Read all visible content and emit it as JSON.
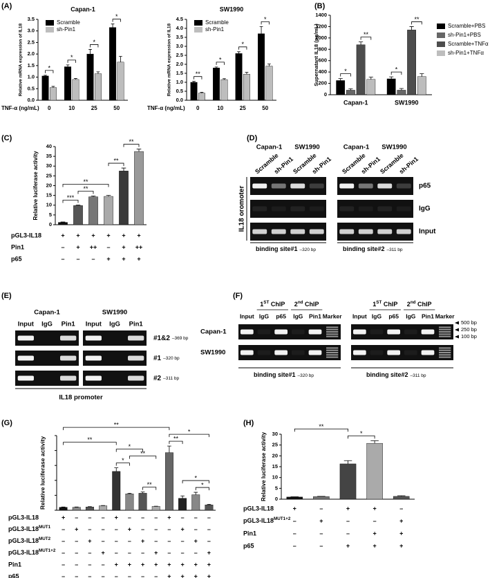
{
  "panel_labels": [
    "(A)",
    "(B)",
    "(C)",
    "(D)",
    "(E)",
    "(F)",
    "(G)",
    "(H)"
  ],
  "chart_data": [
    {
      "type": "bar",
      "title": "Capan-1",
      "ylabel": "Relative mRNA expression of IL18",
      "xlabel": "TNF-α (ng/mL)",
      "categories": [
        "0",
        "10",
        "25",
        "50"
      ],
      "series": [
        {
          "name": "Scramble",
          "color": "#000000",
          "values": [
            1.05,
            1.45,
            2.0,
            3.15
          ],
          "errors": [
            0.03,
            0.08,
            0.2,
            0.15
          ]
        },
        {
          "name": "sh-Pin1",
          "color": "#bdbdbd",
          "values": [
            0.55,
            0.9,
            1.15,
            1.65
          ],
          "errors": [
            0.05,
            0.04,
            0.08,
            0.25
          ]
        }
      ],
      "ylim": [
        0,
        3.5
      ],
      "yticks": [
        {
          "value": 0,
          "label": "0.0"
        },
        {
          "value": 0.5,
          "label": "0.5"
        },
        {
          "value": 1,
          "label": "1.0"
        },
        {
          "value": 1.5,
          "label": "1.5"
        },
        {
          "value": 2,
          "label": "2.0"
        },
        {
          "value": 2.5,
          "label": "2.5"
        },
        {
          "value": 3,
          "label": "3.0"
        },
        {
          "value": 3.5,
          "label": "3.5"
        }
      ],
      "legend": "upper-left",
      "significance": [
        {
          "category": 0,
          "series": [
            0,
            1
          ],
          "label": "*"
        },
        {
          "category": 1,
          "series": [
            0,
            1
          ],
          "label": "*"
        },
        {
          "category": 2,
          "series": [
            0,
            1
          ],
          "label": "*"
        },
        {
          "category": 3,
          "series": [
            0,
            1
          ],
          "label": "*"
        }
      ]
    },
    {
      "type": "bar",
      "title": "SW1990",
      "ylabel": "Relative mRNA expression of IL18",
      "xlabel": "TNF-α (ng/mL)",
      "categories": [
        "0",
        "10",
        "25",
        "50"
      ],
      "series": [
        {
          "name": "Scramble",
          "color": "#000000",
          "values": [
            1.0,
            1.8,
            2.6,
            3.7
          ],
          "errors": [
            0.05,
            0.05,
            0.1,
            0.4
          ]
        },
        {
          "name": "sh-Pin1",
          "color": "#bdbdbd",
          "values": [
            0.4,
            1.15,
            1.45,
            1.9
          ],
          "errors": [
            0.04,
            0.05,
            0.1,
            0.12
          ]
        }
      ],
      "ylim": [
        0,
        4.5
      ],
      "yticks": [
        {
          "value": 0,
          "label": "0.0"
        },
        {
          "value": 0.5,
          "label": "0.5"
        },
        {
          "value": 1,
          "label": "1.0"
        },
        {
          "value": 1.5,
          "label": "1.5"
        },
        {
          "value": 2,
          "label": "2.0"
        },
        {
          "value": 2.5,
          "label": "2.5"
        },
        {
          "value": 3,
          "label": "3.0"
        },
        {
          "value": 3.5,
          "label": "3.5"
        },
        {
          "value": 4,
          "label": "4.0"
        },
        {
          "value": 4.5,
          "label": "4.5"
        }
      ],
      "legend": "upper-left",
      "significance": [
        {
          "category": 0,
          "series": [
            0,
            1
          ],
          "label": "**"
        },
        {
          "category": 1,
          "series": [
            0,
            1
          ],
          "label": "*"
        },
        {
          "category": 2,
          "series": [
            0,
            1
          ],
          "label": "*"
        },
        {
          "category": 3,
          "series": [
            0,
            1
          ],
          "label": "*"
        }
      ]
    },
    {
      "type": "bar",
      "ylabel": "Supernatant IL18 (pg/mL)",
      "categories": [
        "Capan-1",
        "SW1990"
      ],
      "series": [
        {
          "name": "Scramble+PBS",
          "color": "#000000",
          "values": [
            250,
            280
          ],
          "errors": [
            35,
            35
          ]
        },
        {
          "name": "sh-Pin1+PBS",
          "color": "#666666",
          "values": [
            80,
            80
          ],
          "errors": [
            25,
            30
          ]
        },
        {
          "name": "Scramble+TNFα",
          "color": "#4d4d4d",
          "values": [
            880,
            1140
          ],
          "errors": [
            50,
            60
          ]
        },
        {
          "name": "sh-Pin1+TNFα",
          "color": "#bdbdbd",
          "values": [
            270,
            320
          ],
          "errors": [
            40,
            50
          ]
        }
      ],
      "ylim": [
        0,
        1400
      ],
      "yticks": [
        0,
        200,
        400,
        600,
        800,
        1000,
        1200,
        1400
      ],
      "legend": "right",
      "significance": [
        {
          "category": 0,
          "series": [
            0,
            1
          ],
          "label": "*"
        },
        {
          "category": 0,
          "series": [
            2,
            3
          ],
          "label": "**"
        },
        {
          "category": 1,
          "series": [
            0,
            1
          ],
          "label": "*"
        },
        {
          "category": 1,
          "series": [
            2,
            3
          ],
          "label": "**"
        }
      ]
    },
    {
      "type": "bar",
      "ylabel": "Relative  luciferase activity",
      "values": [
        1.2,
        9.8,
        14.3,
        14.5,
        27.5,
        37.5
      ],
      "errors": [
        0.2,
        0.3,
        0.4,
        0.5,
        1.5,
        1.2
      ],
      "colors": [
        "#111111",
        "#555555",
        "#777777",
        "#aaaaaa",
        "#3a3a3a",
        "#999999"
      ],
      "ylim": [
        0,
        40
      ],
      "yticks": [
        0,
        5,
        10,
        15,
        20,
        25,
        30,
        35,
        40
      ],
      "significance": [
        {
          "from": 0,
          "to": 1,
          "label": "***"
        },
        {
          "from": 1,
          "to": 2,
          "label": "**"
        },
        {
          "from": 0,
          "to": 3,
          "label": "**"
        },
        {
          "from": 3,
          "to": 4,
          "label": "**"
        },
        {
          "from": 4,
          "to": 5,
          "label": "**"
        }
      ],
      "conditions": [
        {
          "label": "pGL3-IL18",
          "marks": [
            "+",
            "+",
            "+",
            "+",
            "+",
            "+"
          ]
        },
        {
          "label": "Pin1",
          "marks": [
            "–",
            "+",
            "++",
            "–",
            "+",
            "++"
          ]
        },
        {
          "label": "p65",
          "marks": [
            "–",
            "–",
            "–",
            "+",
            "+",
            "+"
          ]
        }
      ]
    },
    {
      "type": "bar",
      "ylabel": "Relative luciferase activity",
      "values": [
        1.0,
        1.0,
        1.1,
        1.5,
        13.0,
        5.5,
        5.7,
        1.3,
        19.3,
        4.0,
        5.2,
        1.8
      ],
      "errors": [
        0.1,
        0.1,
        0.1,
        0.1,
        1.2,
        0.2,
        0.4,
        0.05,
        2.2,
        0.8,
        0.8,
        0.2
      ],
      "colors": [
        "#111111",
        "#888888",
        "#555555",
        "#aaaaaa",
        "#333333",
        "#888888",
        "#555555",
        "#aaaaaa",
        "#666666",
        "#222222",
        "#888888",
        "#555555"
      ],
      "ylim": [
        0,
        25
      ],
      "yticks": [
        0,
        5,
        10,
        15,
        20,
        25
      ],
      "show_tick_labels": false,
      "significance": [
        {
          "from": 4,
          "to": 5,
          "label": "*"
        },
        {
          "from": 6,
          "to": 7,
          "label": "**"
        },
        {
          "from": 5,
          "to": 7,
          "label": "**"
        },
        {
          "from": 4,
          "to": 6,
          "label": "*"
        },
        {
          "from": 0,
          "to": 4,
          "label": "**"
        },
        {
          "from": 10,
          "to": 11,
          "label": "*"
        },
        {
          "from": 9,
          "to": 11,
          "label": "*"
        },
        {
          "from": 8,
          "to": 9,
          "label": "**"
        },
        {
          "from": 8,
          "to": 11,
          "label": "*"
        },
        {
          "from": 0,
          "to": 8,
          "label": "**"
        }
      ],
      "conditions": [
        {
          "label": "pGL3-IL18",
          "marks": [
            "+",
            "–",
            "–",
            "–",
            "+",
            "–",
            "–",
            "–",
            "+",
            "–",
            "–",
            "–"
          ]
        },
        {
          "label": {
            "text": "pGL3-IL18",
            "sup": "MUT1"
          },
          "marks": [
            "–",
            "+",
            "–",
            "–",
            "–",
            "+",
            "–",
            "–",
            "–",
            "+",
            "–",
            "–"
          ]
        },
        {
          "label": {
            "text": "pGL3-IL18",
            "sup": "MUT2"
          },
          "marks": [
            "–",
            "–",
            "+",
            "–",
            "–",
            "–",
            "+",
            "–",
            "–",
            "–",
            "+",
            "–"
          ]
        },
        {
          "label": {
            "text": "pGL3-IL18",
            "sup": "MUT1+2"
          },
          "marks": [
            "–",
            "–",
            "–",
            "+",
            "–",
            "–",
            "–",
            "+",
            "–",
            "–",
            "–",
            "+"
          ]
        },
        {
          "label": "Pin1",
          "marks": [
            "–",
            "–",
            "–",
            "–",
            "+",
            "+",
            "+",
            "+",
            "+",
            "+",
            "+",
            "+"
          ]
        },
        {
          "label": "p65",
          "marks": [
            "–",
            "–",
            "–",
            "–",
            "–",
            "–",
            "–",
            "–",
            "+",
            "+",
            "+",
            "+"
          ]
        }
      ]
    },
    {
      "type": "bar",
      "ylabel": "Relative  luciferase activity",
      "values": [
        1.0,
        1.2,
        16.3,
        25.8,
        1.3
      ],
      "errors": [
        0.1,
        0.1,
        1.5,
        1.2,
        0.3
      ],
      "colors": [
        "#111111",
        "#777777",
        "#444444",
        "#aaaaaa",
        "#555555"
      ],
      "ylim": [
        0,
        30
      ],
      "yticks": [
        0,
        5,
        10,
        15,
        20,
        25,
        30
      ],
      "significance": [
        {
          "from": 2,
          "to": 3,
          "label": "*"
        },
        {
          "from": 0,
          "to": 2,
          "label": "**"
        }
      ],
      "conditions": [
        {
          "label": "pGL3-IL18",
          "marks": [
            "+",
            "–",
            "+",
            "+",
            "–"
          ]
        },
        {
          "label": {
            "text": "pGL3-IL18",
            "sup": "MUT1+2"
          },
          "marks": [
            "–",
            "+",
            "–",
            "–",
            "+"
          ]
        },
        {
          "label": "Pin1",
          "marks": [
            "–",
            "–",
            "–",
            "+",
            "+"
          ]
        },
        {
          "label": "p65",
          "marks": [
            "–",
            "–",
            "+",
            "+",
            "+"
          ]
        }
      ]
    }
  ],
  "gels": {
    "D": {
      "groups": [
        "Capan-1",
        "SW1990",
        "Capan-1",
        "SW1990"
      ],
      "lanes": [
        "Scramble",
        "sh-Pin1",
        "Scramble",
        "sh-Pin1",
        "Scramble",
        "sh-Pin1",
        "Scramble",
        "sh-Pin1"
      ],
      "rows": [
        "p65",
        "IgG",
        "Input"
      ],
      "side_label": "IL18 oromoter",
      "sites": [
        {
          "name": "binding site#1",
          "size": "–320 bp"
        },
        {
          "name": "binding site#2",
          "size": "–311 bp"
        }
      ]
    },
    "E": {
      "groups": [
        "Capan-1",
        "SW1990"
      ],
      "lanes": [
        "Input",
        "IgG",
        "Pin1",
        "Input",
        "IgG",
        "Pin1"
      ],
      "rows": [
        {
          "name": "#1&2",
          "size": "–369 bp"
        },
        {
          "name": "#1",
          "size": "–320 bp"
        },
        {
          "name": "#2",
          "size": "–311 bp"
        }
      ],
      "footer": "IL18 promoter"
    },
    "F": {
      "rows": [
        "Capan-1",
        "SW1990"
      ],
      "blocks": [
        {
          "headers": [
            {
              "text": "1",
              "sup": "ST",
              "tail": " ChIP"
            },
            {
              "text": "2",
              "sup": "nd",
              "tail": " ChIP"
            }
          ],
          "lanes": [
            "Input",
            "IgG",
            "p65",
            "IgG",
            "Pin1",
            "Marker"
          ],
          "site": {
            "name": "binding site#1",
            "size": "–320 bp"
          }
        },
        {
          "headers": [
            {
              "text": "1",
              "sup": "ST",
              "tail": " ChIP"
            },
            {
              "text": "2",
              "sup": "nd",
              "tail": " ChIP"
            }
          ],
          "lanes": [
            "Input",
            "IgG",
            "p65",
            "IgG",
            "Pin1",
            "Marker"
          ],
          "site": {
            "name": "binding site#2",
            "size": "–311 bp"
          }
        }
      ],
      "markers": [
        "500 bp",
        "250 bp",
        "100 bp"
      ]
    }
  }
}
